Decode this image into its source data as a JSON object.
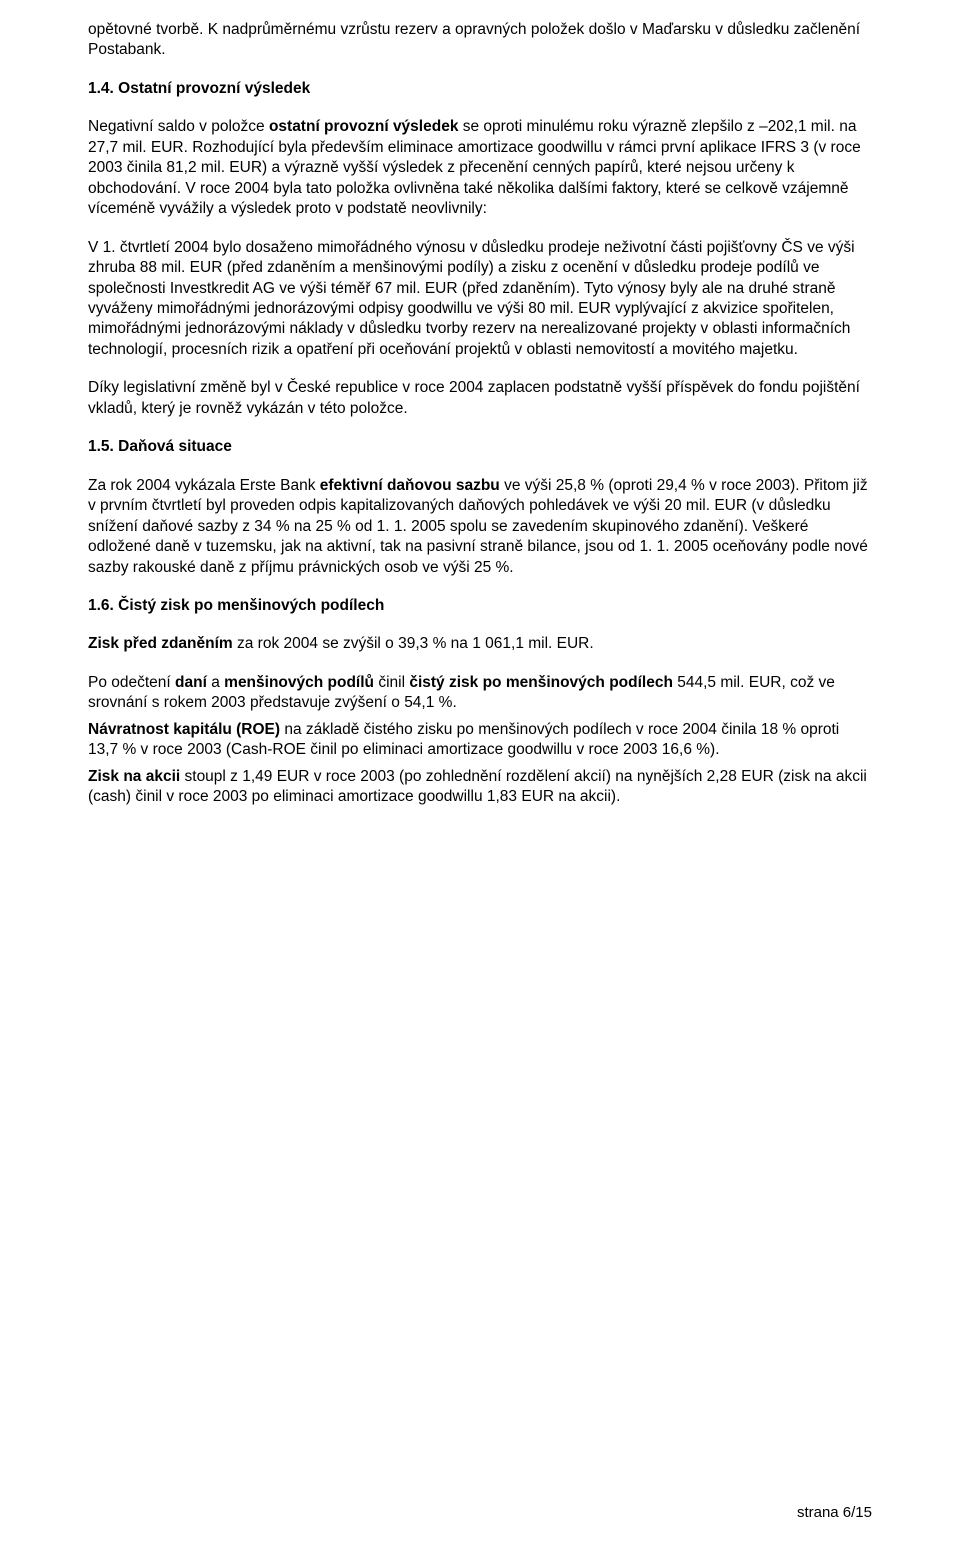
{
  "p1": "opětovné tvorbě. K nadprůměrnému vzrůstu rezerv a opravných položek došlo v Maďarsku v důsledku začlenění Postabank.",
  "h1": "1.4. Ostatní provozní výsledek",
  "p2a": "Negativní saldo v položce ",
  "p2b": "ostatní provozní výsledek",
  "p2c": " se oproti minulému roku výrazně zlepšilo z –202,1 mil. na 27,7 mil. EUR. Rozhodující byla především eliminace amortizace goodwillu v rámci první aplikace IFRS 3 (v roce 2003 činila 81,2 mil. EUR) a výrazně vyšší výsledek z přecenění cenných papírů, které nejsou určeny k obchodování. V roce 2004 byla tato položka ovlivněna také několika dalšími faktory, které se celkově vzájemně víceméně vyvážily a výsledek proto v podstatě neovlivnily:",
  "p3": "V 1. čtvrtletí 2004 bylo dosaženo mimořádného výnosu v důsledku prodeje neživotní části pojišťovny ČS ve výši zhruba 88 mil. EUR (před zdaněním a menšinovými podíly) a zisku z ocenění v důsledku prodeje podílů ve společnosti Investkredit AG ve výši téměř 67 mil. EUR (před zdaněním). Tyto výnosy byly ale na druhé straně vyváženy mimořádnými jednorázovými odpisy goodwillu ve výši 80 mil. EUR vyplývající z akvizice spořitelen, mimořádnými jednorázovými náklady v důsledku tvorby rezerv na nerealizované projekty v oblasti informačních technologií, procesních rizik a opatření při oceňování projektů v oblasti nemovitostí a movitého majetku.",
  "p4": "Díky legislativní změně byl v České republice v roce 2004 zaplacen podstatně vyšší příspěvek do fondu pojištění vkladů, který je rovněž vykázán v této položce.",
  "h2": "1.5. Daňová situace",
  "p5a": "Za rok 2004 vykázala Erste Bank ",
  "p5b": "efektivní daňovou sazbu",
  "p5c": " ve výši 25,8 % (oproti 29,4 % v roce 2003). Přitom již v prvním čtvrtletí byl proveden odpis kapitalizovaných daňových pohledávek ve výši 20 mil. EUR (v důsledku snížení daňové sazby z 34 % na 25 % od 1. 1. 2005 spolu se zavedením skupinového zdanění). Veškeré odložené daně v tuzemsku, jak na aktivní, tak na pasivní straně bilance, jsou od 1. 1. 2005 oceňovány podle nové sazby rakouské daně z příjmu právnických osob ve výši 25 %.",
  "h3": "1.6. Čistý zisk po menšinových podílech",
  "p6a": "Zisk před zdaněním",
  "p6b": " za rok 2004 se zvýšil o 39,3 % na 1 061,1 mil. EUR.",
  "p7a": "Po odečtení ",
  "p7b": "daní",
  "p7c": " a ",
  "p7d": "menšinových podílů",
  "p7e": " činil ",
  "p7f": "čistý zisk po menšinových podílech",
  "p7g": " 544,5 mil. EUR, což ve srovnání s rokem 2003 představuje zvýšení o 54,1 %.",
  "p8a": "Návratnost kapitálu (ROE)",
  "p8b": " na základě čistého zisku po menšinových podílech v roce 2004 činila 18 % oproti 13,7 % v roce 2003 (Cash-ROE činil po eliminaci amortizace goodwillu v roce 2003 16,6 %).",
  "p9a": "Zisk na akcii",
  "p9b": " stoupl z 1,49 EUR v roce 2003 (po zohlednění rozdělení akcií) na nynějších 2,28 EUR (zisk na akcii (cash) činil v roce 2003 po eliminaci amortizace goodwillu 1,83 EUR na akcii).",
  "footer": "strana 6/15"
}
